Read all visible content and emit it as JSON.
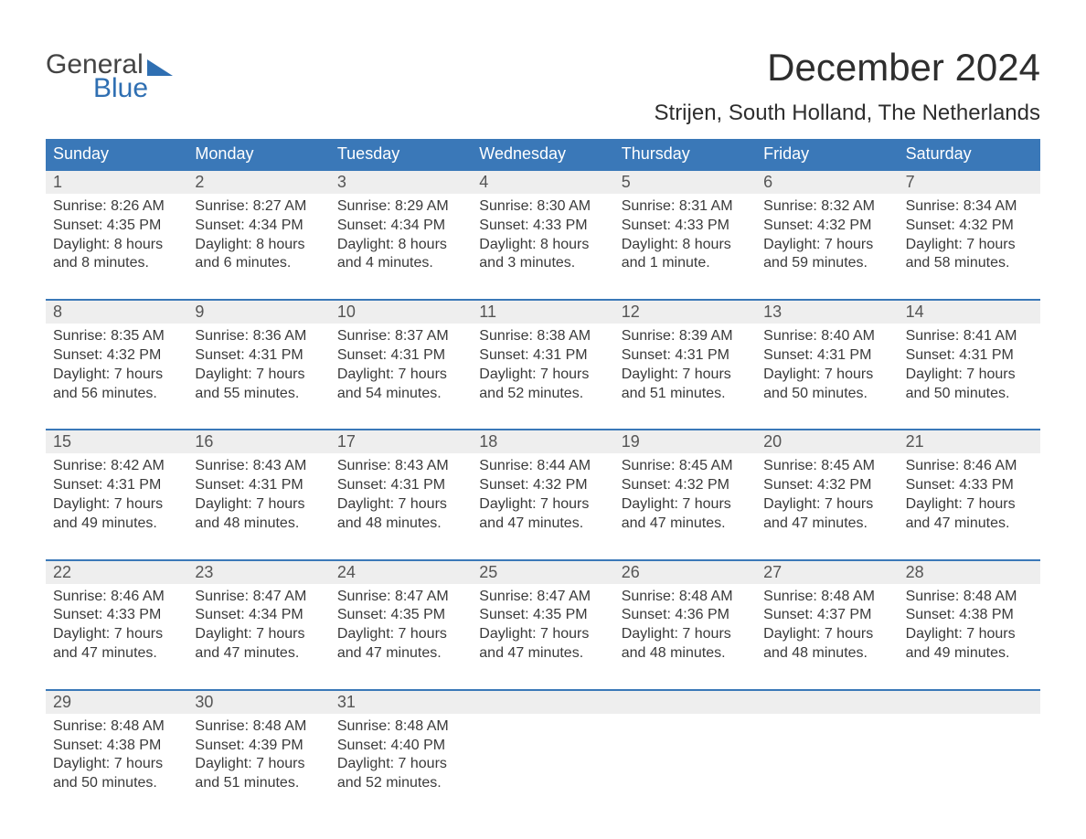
{
  "brand": {
    "word1": "General",
    "word2": "Blue"
  },
  "title": "December 2024",
  "location": "Strijen, South Holland, The Netherlands",
  "colors": {
    "header_bg": "#3a78b8",
    "header_text": "#ffffff",
    "daynum_bg": "#eeeeee",
    "week_border": "#3a78b8",
    "body_text": "#3a3a3a",
    "brand_blue": "#2f6fb2"
  },
  "typography": {
    "month_title_fontsize": 42,
    "location_fontsize": 24,
    "weekday_fontsize": 18,
    "daynum_fontsize": 18,
    "body_fontsize": 16
  },
  "weekdays": [
    "Sunday",
    "Monday",
    "Tuesday",
    "Wednesday",
    "Thursday",
    "Friday",
    "Saturday"
  ],
  "weeks": [
    [
      {
        "n": "1",
        "sunrise": "Sunrise: 8:26 AM",
        "sunset": "Sunset: 4:35 PM",
        "day1": "Daylight: 8 hours",
        "day2": "and 8 minutes."
      },
      {
        "n": "2",
        "sunrise": "Sunrise: 8:27 AM",
        "sunset": "Sunset: 4:34 PM",
        "day1": "Daylight: 8 hours",
        "day2": "and 6 minutes."
      },
      {
        "n": "3",
        "sunrise": "Sunrise: 8:29 AM",
        "sunset": "Sunset: 4:34 PM",
        "day1": "Daylight: 8 hours",
        "day2": "and 4 minutes."
      },
      {
        "n": "4",
        "sunrise": "Sunrise: 8:30 AM",
        "sunset": "Sunset: 4:33 PM",
        "day1": "Daylight: 8 hours",
        "day2": "and 3 minutes."
      },
      {
        "n": "5",
        "sunrise": "Sunrise: 8:31 AM",
        "sunset": "Sunset: 4:33 PM",
        "day1": "Daylight: 8 hours",
        "day2": "and 1 minute."
      },
      {
        "n": "6",
        "sunrise": "Sunrise: 8:32 AM",
        "sunset": "Sunset: 4:32 PM",
        "day1": "Daylight: 7 hours",
        "day2": "and 59 minutes."
      },
      {
        "n": "7",
        "sunrise": "Sunrise: 8:34 AM",
        "sunset": "Sunset: 4:32 PM",
        "day1": "Daylight: 7 hours",
        "day2": "and 58 minutes."
      }
    ],
    [
      {
        "n": "8",
        "sunrise": "Sunrise: 8:35 AM",
        "sunset": "Sunset: 4:32 PM",
        "day1": "Daylight: 7 hours",
        "day2": "and 56 minutes."
      },
      {
        "n": "9",
        "sunrise": "Sunrise: 8:36 AM",
        "sunset": "Sunset: 4:31 PM",
        "day1": "Daylight: 7 hours",
        "day2": "and 55 minutes."
      },
      {
        "n": "10",
        "sunrise": "Sunrise: 8:37 AM",
        "sunset": "Sunset: 4:31 PM",
        "day1": "Daylight: 7 hours",
        "day2": "and 54 minutes."
      },
      {
        "n": "11",
        "sunrise": "Sunrise: 8:38 AM",
        "sunset": "Sunset: 4:31 PM",
        "day1": "Daylight: 7 hours",
        "day2": "and 52 minutes."
      },
      {
        "n": "12",
        "sunrise": "Sunrise: 8:39 AM",
        "sunset": "Sunset: 4:31 PM",
        "day1": "Daylight: 7 hours",
        "day2": "and 51 minutes."
      },
      {
        "n": "13",
        "sunrise": "Sunrise: 8:40 AM",
        "sunset": "Sunset: 4:31 PM",
        "day1": "Daylight: 7 hours",
        "day2": "and 50 minutes."
      },
      {
        "n": "14",
        "sunrise": "Sunrise: 8:41 AM",
        "sunset": "Sunset: 4:31 PM",
        "day1": "Daylight: 7 hours",
        "day2": "and 50 minutes."
      }
    ],
    [
      {
        "n": "15",
        "sunrise": "Sunrise: 8:42 AM",
        "sunset": "Sunset: 4:31 PM",
        "day1": "Daylight: 7 hours",
        "day2": "and 49 minutes."
      },
      {
        "n": "16",
        "sunrise": "Sunrise: 8:43 AM",
        "sunset": "Sunset: 4:31 PM",
        "day1": "Daylight: 7 hours",
        "day2": "and 48 minutes."
      },
      {
        "n": "17",
        "sunrise": "Sunrise: 8:43 AM",
        "sunset": "Sunset: 4:31 PM",
        "day1": "Daylight: 7 hours",
        "day2": "and 48 minutes."
      },
      {
        "n": "18",
        "sunrise": "Sunrise: 8:44 AM",
        "sunset": "Sunset: 4:32 PM",
        "day1": "Daylight: 7 hours",
        "day2": "and 47 minutes."
      },
      {
        "n": "19",
        "sunrise": "Sunrise: 8:45 AM",
        "sunset": "Sunset: 4:32 PM",
        "day1": "Daylight: 7 hours",
        "day2": "and 47 minutes."
      },
      {
        "n": "20",
        "sunrise": "Sunrise: 8:45 AM",
        "sunset": "Sunset: 4:32 PM",
        "day1": "Daylight: 7 hours",
        "day2": "and 47 minutes."
      },
      {
        "n": "21",
        "sunrise": "Sunrise: 8:46 AM",
        "sunset": "Sunset: 4:33 PM",
        "day1": "Daylight: 7 hours",
        "day2": "and 47 minutes."
      }
    ],
    [
      {
        "n": "22",
        "sunrise": "Sunrise: 8:46 AM",
        "sunset": "Sunset: 4:33 PM",
        "day1": "Daylight: 7 hours",
        "day2": "and 47 minutes."
      },
      {
        "n": "23",
        "sunrise": "Sunrise: 8:47 AM",
        "sunset": "Sunset: 4:34 PM",
        "day1": "Daylight: 7 hours",
        "day2": "and 47 minutes."
      },
      {
        "n": "24",
        "sunrise": "Sunrise: 8:47 AM",
        "sunset": "Sunset: 4:35 PM",
        "day1": "Daylight: 7 hours",
        "day2": "and 47 minutes."
      },
      {
        "n": "25",
        "sunrise": "Sunrise: 8:47 AM",
        "sunset": "Sunset: 4:35 PM",
        "day1": "Daylight: 7 hours",
        "day2": "and 47 minutes."
      },
      {
        "n": "26",
        "sunrise": "Sunrise: 8:48 AM",
        "sunset": "Sunset: 4:36 PM",
        "day1": "Daylight: 7 hours",
        "day2": "and 48 minutes."
      },
      {
        "n": "27",
        "sunrise": "Sunrise: 8:48 AM",
        "sunset": "Sunset: 4:37 PM",
        "day1": "Daylight: 7 hours",
        "day2": "and 48 minutes."
      },
      {
        "n": "28",
        "sunrise": "Sunrise: 8:48 AM",
        "sunset": "Sunset: 4:38 PM",
        "day1": "Daylight: 7 hours",
        "day2": "and 49 minutes."
      }
    ],
    [
      {
        "n": "29",
        "sunrise": "Sunrise: 8:48 AM",
        "sunset": "Sunset: 4:38 PM",
        "day1": "Daylight: 7 hours",
        "day2": "and 50 minutes."
      },
      {
        "n": "30",
        "sunrise": "Sunrise: 8:48 AM",
        "sunset": "Sunset: 4:39 PM",
        "day1": "Daylight: 7 hours",
        "day2": "and 51 minutes."
      },
      {
        "n": "31",
        "sunrise": "Sunrise: 8:48 AM",
        "sunset": "Sunset: 4:40 PM",
        "day1": "Daylight: 7 hours",
        "day2": "and 52 minutes."
      },
      null,
      null,
      null,
      null
    ]
  ]
}
